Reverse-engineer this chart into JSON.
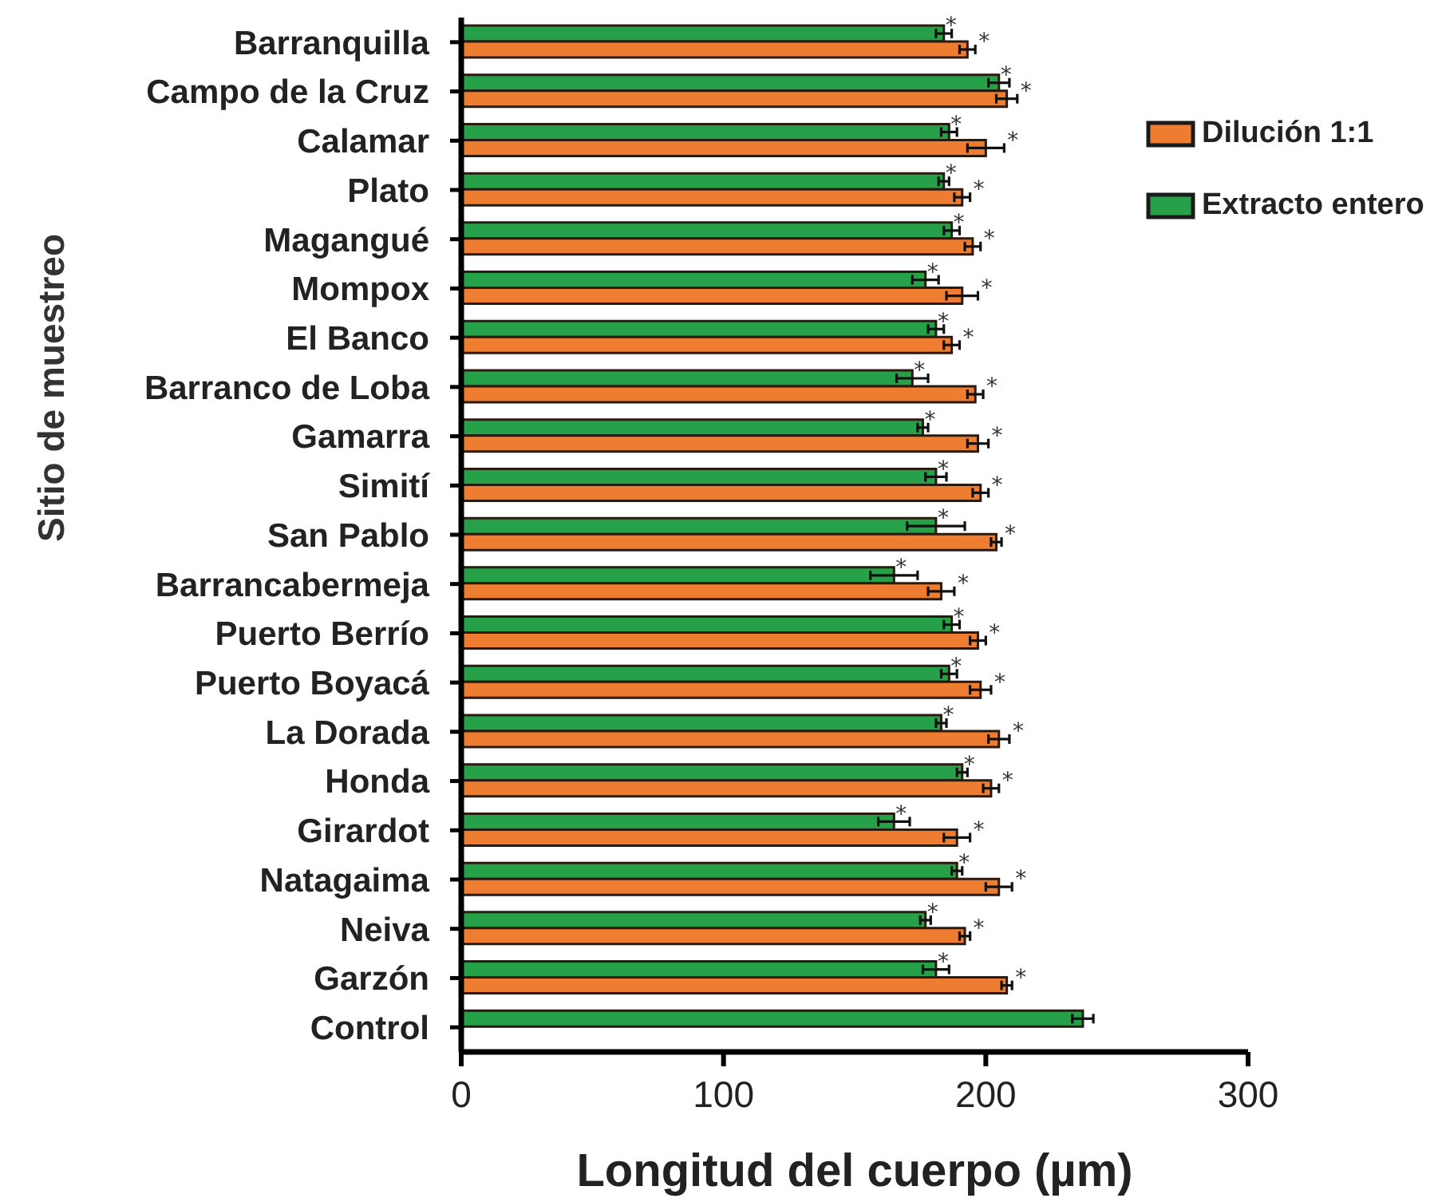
{
  "chart_data": {
    "type": "bar",
    "orientation": "horizontal",
    "xlabel": "Longitud del cuerpo (µm)",
    "ylabel": "Sitio de muestreo",
    "categories": [
      "Barranquilla",
      "Campo de la Cruz",
      "Calamar",
      "Plato",
      "Magangué",
      "Mompox",
      "El Banco",
      "Barranco de Loba",
      "Gamarra",
      "Simití",
      "San Pablo",
      "Barrancabermeja",
      "Puerto Berrío",
      "Puerto Boyacá",
      "La Dorada",
      "Honda",
      "Girardot",
      "Natagaima",
      "Neiva",
      "Garzón",
      "Control"
    ],
    "series": [
      {
        "name": "Extracto entero",
        "color": "#27a04a",
        "values": [
          184,
          205,
          186,
          184,
          187,
          177,
          181,
          172,
          176,
          181,
          181,
          165,
          187,
          186,
          183,
          191,
          165,
          189,
          177,
          181,
          237
        ],
        "errors": [
          3,
          4,
          3,
          2,
          3,
          5,
          3,
          6,
          2,
          4,
          11,
          9,
          3,
          3,
          2,
          2,
          6,
          2,
          2,
          5,
          4
        ],
        "value_labels": [
          "*",
          "*",
          "*",
          "*",
          "*",
          "*",
          "*",
          "*",
          "*",
          "*",
          "*",
          "*",
          "*",
          "*",
          "*",
          "*",
          "*",
          "*",
          "*",
          "*",
          null
        ]
      },
      {
        "name": "Dilución 1:1",
        "color": "#ee7d31",
        "values": [
          193,
          208,
          200,
          191,
          195,
          191,
          187,
          196,
          197,
          198,
          204,
          183,
          197,
          198,
          205,
          202,
          189,
          205,
          192,
          208,
          null
        ],
        "errors": [
          3,
          4,
          7,
          3,
          3,
          6,
          3,
          3,
          4,
          3,
          2,
          5,
          3,
          4,
          4,
          3,
          5,
          5,
          2,
          2,
          null
        ],
        "value_labels": [
          "*",
          "*",
          "*",
          "*",
          "*",
          "*",
          "*",
          "*",
          "*",
          "*",
          "*",
          "*",
          "*",
          "*",
          "*",
          "*",
          "*",
          "*",
          "*",
          "*",
          null
        ]
      }
    ],
    "xlim": [
      0,
      300
    ],
    "xticks": [
      0,
      100,
      200,
      300
    ],
    "legend": "top right"
  }
}
